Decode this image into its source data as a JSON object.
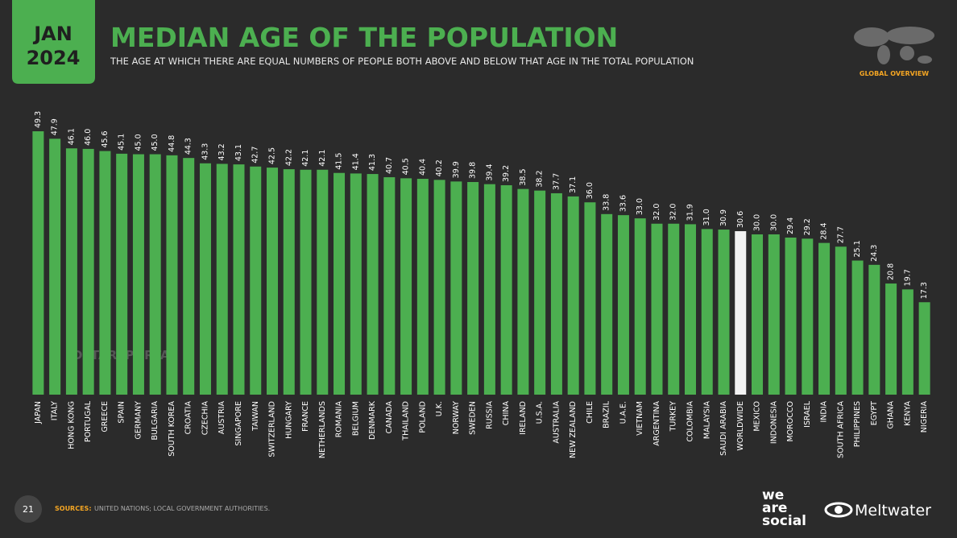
{
  "chart_data": {
    "type": "bar",
    "title": "MEDIAN AGE OF THE POPULATION",
    "subtitle": "THE AGE AT WHICH THERE ARE EQUAL NUMBERS OF PEOPLE BOTH ABOVE AND BELOW THAT AGE IN THE TOTAL POPULATION",
    "categories": [
      "JAPAN",
      "ITALY",
      "HONG KONG",
      "PORTUGAL",
      "GREECE",
      "SPAIN",
      "GERMANY",
      "BULGARIA",
      "SOUTH KOREA",
      "CROATIA",
      "CZECHIA",
      "AUSTRIA",
      "SINGAPORE",
      "TAIWAN",
      "SWITZERLAND",
      "HUNGARY",
      "FRANCE",
      "NETHERLANDS",
      "ROMANIA",
      "BELGIUM",
      "DENMARK",
      "CANADA",
      "THAILAND",
      "POLAND",
      "U.K.",
      "NORWAY",
      "SWEDEN",
      "RUSSIA",
      "CHINA",
      "IRELAND",
      "U.S.A.",
      "AUSTRALIA",
      "NEW ZEALAND",
      "CHILE",
      "BRAZIL",
      "U.A.E.",
      "VIETNAM",
      "ARGENTINA",
      "TURKEY",
      "COLOMBIA",
      "MALAYSIA",
      "SAUDI ARABIA",
      "WORLDWIDE",
      "MEXICO",
      "INDONESIA",
      "MOROCCO",
      "ISRAEL",
      "INDIA",
      "SOUTH AFRICA",
      "PHILIPPINES",
      "EGYPT",
      "GHANA",
      "KENYA",
      "NIGERIA"
    ],
    "values": [
      49.3,
      47.9,
      46.1,
      46.0,
      45.6,
      45.1,
      45.0,
      45.0,
      44.8,
      44.3,
      43.3,
      43.2,
      43.1,
      42.7,
      42.5,
      42.2,
      42.1,
      42.1,
      41.5,
      41.4,
      41.3,
      40.7,
      40.5,
      40.4,
      40.2,
      39.9,
      39.8,
      39.4,
      39.2,
      38.5,
      38.2,
      37.7,
      37.1,
      36.0,
      33.8,
      33.6,
      33.0,
      32.0,
      32.0,
      31.9,
      31.0,
      30.9,
      30.6,
      30.0,
      30.0,
      29.4,
      29.2,
      28.4,
      27.7,
      25.1,
      24.3,
      20.8,
      19.7,
      17.3
    ],
    "value_labels": [
      "49.3",
      "47.9",
      "46.1",
      "46.0",
      "45.6",
      "45.1",
      "45.0",
      "45.0",
      "44.8",
      "44.3",
      "43.3",
      "43.2",
      "43.1",
      "42.7",
      "42.5",
      "42.2",
      "42.1",
      "42.1",
      "41.5",
      "41.4",
      "41.3",
      "40.7",
      "40.5",
      "40.4",
      "40.2",
      "39.9",
      "39.8",
      "39.4",
      "39.2",
      "38.5",
      "38.2",
      "37.7",
      "37.1",
      "36.0",
      "33.8",
      "33.6",
      "33.0",
      "32.0",
      "32.0",
      "31.9",
      "31.0",
      "30.9",
      "30.6",
      "30.0",
      "30.0",
      "29.4",
      "29.2",
      "28.4",
      "27.7",
      "25.1",
      "24.3",
      "20.8",
      "19.7",
      "17.3"
    ],
    "colors": [
      "#4caf50",
      "#4caf50",
      "#4caf50",
      "#4caf50",
      "#4caf50",
      "#4caf50",
      "#4caf50",
      "#4caf50",
      "#4caf50",
      "#4caf50",
      "#4caf50",
      "#4caf50",
      "#4caf50",
      "#4caf50",
      "#4caf50",
      "#4caf50",
      "#4caf50",
      "#4caf50",
      "#4caf50",
      "#4caf50",
      "#4caf50",
      "#4caf50",
      "#4caf50",
      "#4caf50",
      "#4caf50",
      "#4caf50",
      "#4caf50",
      "#4caf50",
      "#4caf50",
      "#4caf50",
      "#4caf50",
      "#4caf50",
      "#4caf50",
      "#4caf50",
      "#4caf50",
      "#4caf50",
      "#4caf50",
      "#4caf50",
      "#4caf50",
      "#4caf50",
      "#4caf50",
      "#4caf50",
      "#f2f2f2",
      "#4caf50",
      "#4caf50",
      "#4caf50",
      "#4caf50",
      "#4caf50",
      "#4caf50",
      "#4caf50",
      "#4caf50",
      "#4caf50",
      "#4caf50",
      "#4caf50"
    ]
  },
  "header": {
    "month": "JAN",
    "year": "2024",
    "section": "GLOBAL OVERVIEW",
    "watermark": "DATAREPORTAL"
  },
  "footer": {
    "page": "21",
    "sources_label": "SOURCES:",
    "sources": "UNITED NATIONS; LOCAL GOVERNMENT AUTHORITIES.",
    "brand_1": [
      "we",
      "are",
      "social"
    ],
    "brand_2": "Meltwater"
  }
}
